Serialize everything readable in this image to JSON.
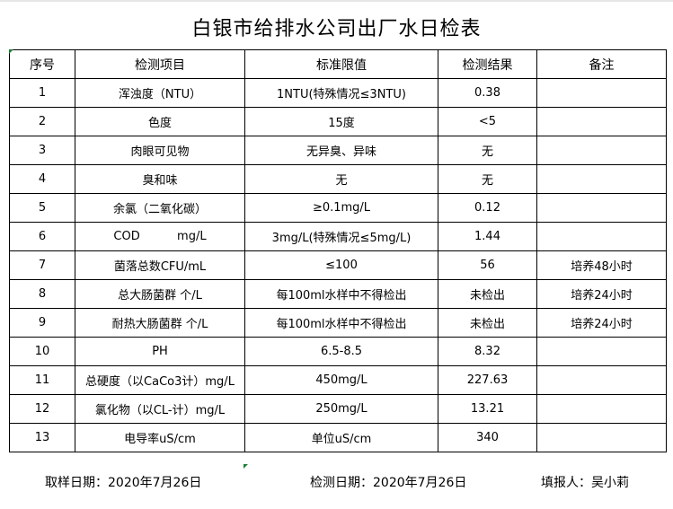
{
  "title": "白银市给排水公司出厂水日检表",
  "headers": [
    "序号",
    "检测项目",
    "标准限值",
    "检测结果",
    "备注"
  ],
  "rows": [
    [
      "1",
      "浑浊度（NTU）",
      "1NTU(特殊情况≤3NTU)",
      "0.38",
      ""
    ],
    [
      "2",
      "色度",
      "15度",
      "<5",
      ""
    ],
    [
      "3",
      "肉眼可见物",
      "无异臭、异味",
      "无",
      ""
    ],
    [
      "4",
      "臭和味",
      "无",
      "无",
      ""
    ],
    [
      "5",
      "余氯（二氧化碳）",
      "≥0.1mg/L",
      "0.12",
      ""
    ],
    [
      "6",
      "COD          mg/L",
      "3mg/L(特殊情况≤5mg/L)",
      "1.44",
      ""
    ],
    [
      "7",
      "菌落总数CFU/mL",
      "≤100",
      "56",
      "培养48小时"
    ],
    [
      "8",
      "总大肠菌群 个/L",
      "每100ml水样中不得检出",
      "未检出",
      "培养24小时"
    ],
    [
      "9",
      "耐热大肠菌群 个/L",
      "每100ml水样中不得检出",
      "未检出",
      "培养24小时"
    ],
    [
      "10",
      "PH",
      "6.5-8.5",
      "8.32",
      ""
    ],
    [
      "11",
      "总硬度（以CaCo3计）mg/L",
      "450mg/L",
      "227.63",
      ""
    ],
    [
      "12",
      "氯化物（以CL-计）mg/L",
      "250mg/L",
      "13.21",
      ""
    ],
    [
      "13",
      "电导率uS/cm",
      "单位uS/cm",
      "340",
      ""
    ]
  ],
  "footer": {
    "sample_date": "取样日期：2020年7月26日",
    "test_date": "检测日期：2020年7月26日",
    "reporter": "填报人：吴小莉"
  }
}
